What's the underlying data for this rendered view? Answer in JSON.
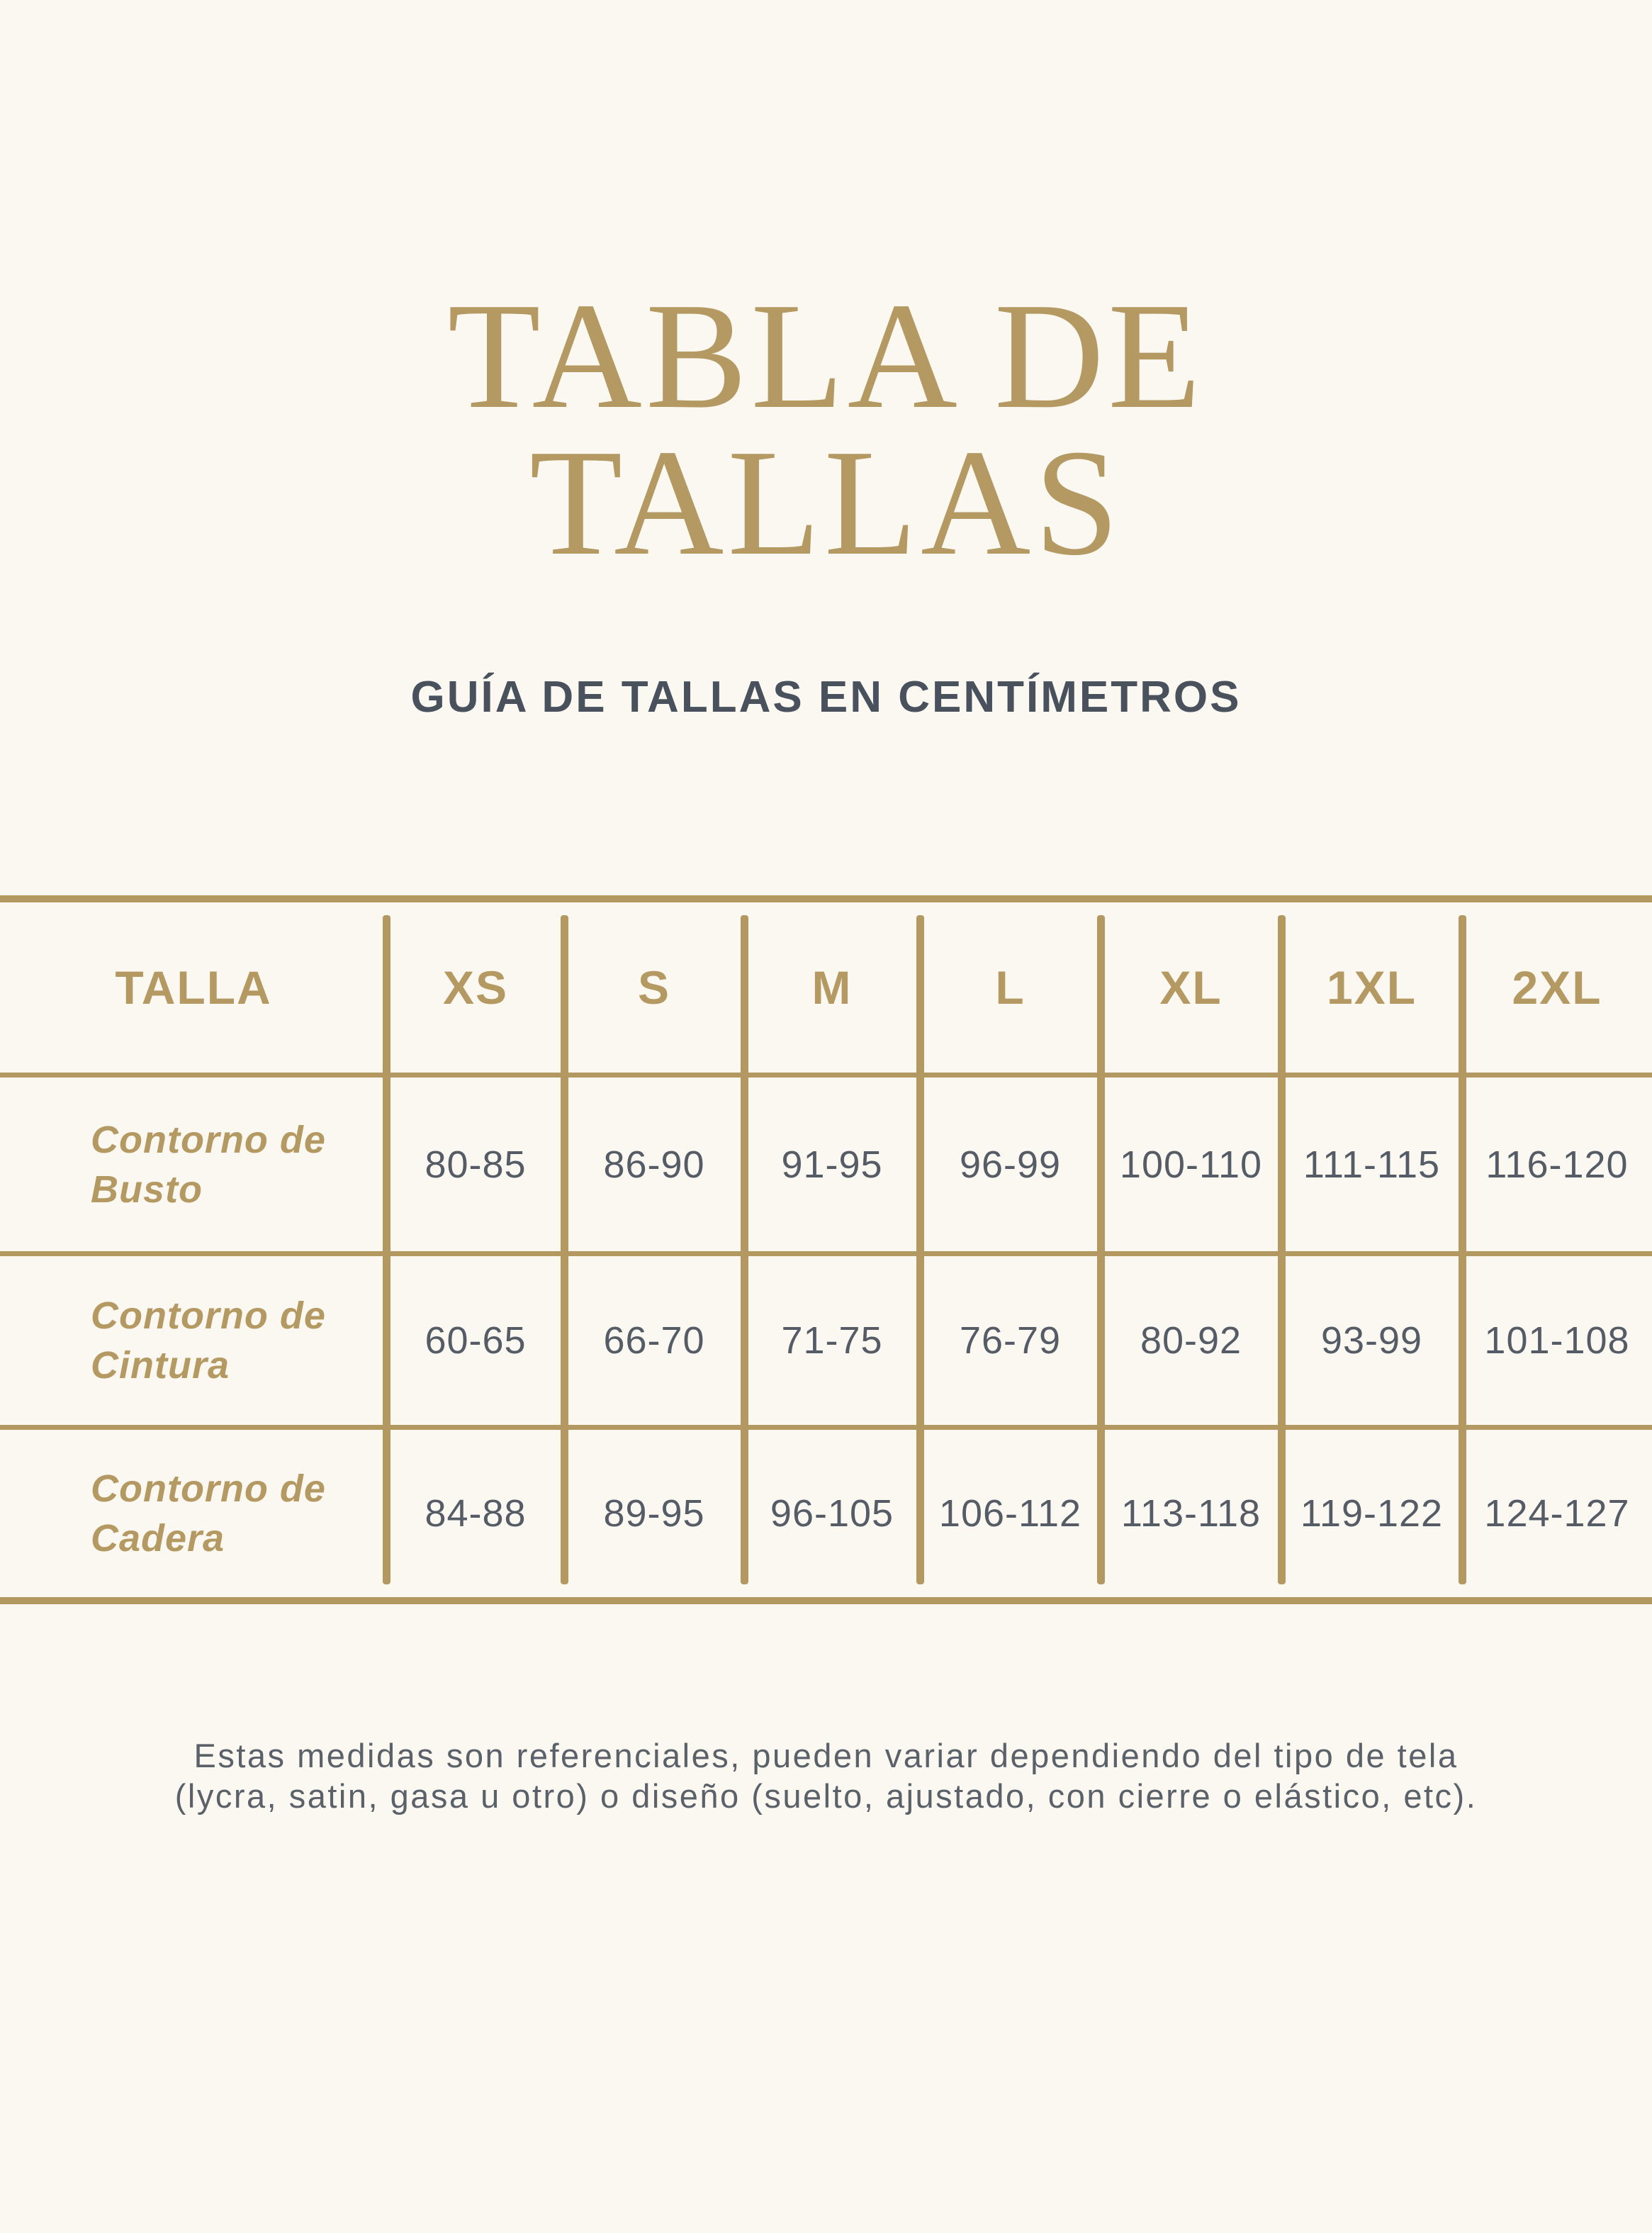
{
  "page": {
    "background_color": "#fbf8f2",
    "accent_gold": "#b49a62",
    "line_gold": "#b39861",
    "text_dark": "#49515c",
    "text_gray": "#555c66"
  },
  "title": {
    "line1": "TABLA DE",
    "line2": "TALLAS"
  },
  "subtitle": "GUÍA DE TALLAS EN CENTÍMETROS",
  "table": {
    "header": [
      "TALLA",
      "XS",
      "S",
      "M",
      "L",
      "XL",
      "1XL",
      "2XL"
    ],
    "rows": [
      {
        "label": "Contorno de Busto",
        "values": [
          "80-85",
          "86-90",
          "91-95",
          "96-99",
          "100-110",
          "111-115",
          "116-120"
        ]
      },
      {
        "label": "Contorno de Cintura",
        "values": [
          "60-65",
          "66-70",
          "71-75",
          "76-79",
          "80-92",
          "93-99",
          "101-108"
        ]
      },
      {
        "label": "Contorno de Cadera",
        "values": [
          "84-88",
          "89-95",
          "96-105",
          "106-112",
          "113-118",
          "119-122",
          "124-127"
        ]
      }
    ]
  },
  "footer": {
    "line1": "Estas medidas son referenciales, pueden variar dependiendo del tipo de tela",
    "line2": "(lycra, satin, gasa u otro) o diseño (suelto, ajustado, con cierre o elástico, etc)."
  }
}
